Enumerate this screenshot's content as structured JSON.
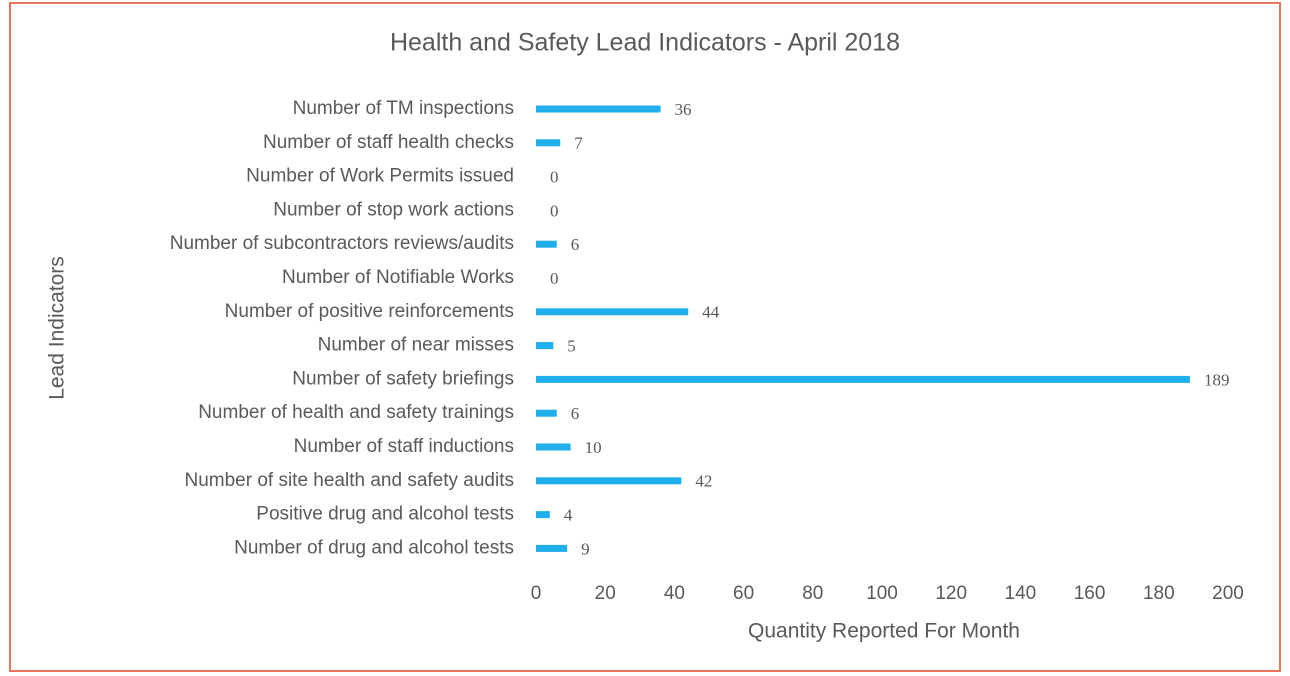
{
  "chart_data": {
    "type": "bar",
    "orientation": "horizontal",
    "title": "Health and Safety Lead Indicators - April 2018",
    "xlabel": "Quantity Reported For Month",
    "ylabel": "Lead Indicators",
    "categories": [
      "Number of TM inspections",
      "Number of staff health checks",
      "Number of Work Permits issued",
      "Number of stop work actions",
      "Number of subcontractors reviews/audits",
      "Number of Notifiable Works",
      "Number of positive reinforcements",
      "Number of near misses",
      "Number of safety briefings",
      "Number of health and safety trainings",
      "Number of staff inductions",
      "Number of site health and safety audits",
      "Positive drug and alcohol tests",
      "Number of drug and alcohol tests"
    ],
    "values": [
      36,
      7,
      0,
      0,
      6,
      0,
      44,
      5,
      189,
      6,
      10,
      42,
      4,
      9
    ],
    "color": "#1fb0ec",
    "xlim": [
      0,
      200
    ],
    "xticks": [
      0,
      20,
      40,
      60,
      80,
      100,
      120,
      140,
      160,
      180,
      200
    ],
    "grid": false
  }
}
